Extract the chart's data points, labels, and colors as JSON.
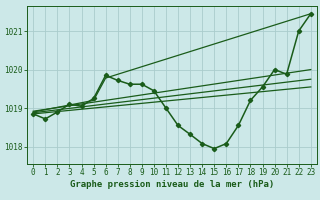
{
  "bg_color": "#cce8e8",
  "grid_color": "#aacccc",
  "line_color": "#1a5c1a",
  "title": "Graphe pression niveau de la mer (hPa)",
  "title_fontsize": 6.5,
  "tick_fontsize": 5.5,
  "xlim": [
    -0.5,
    23.5
  ],
  "ylim": [
    1017.55,
    1021.65
  ],
  "yticks": [
    1018,
    1019,
    1020,
    1021
  ],
  "xticks": [
    0,
    1,
    2,
    3,
    4,
    5,
    6,
    7,
    8,
    9,
    10,
    11,
    12,
    13,
    14,
    15,
    16,
    17,
    18,
    19,
    20,
    21,
    22,
    23
  ],
  "lines": [
    {
      "x": [
        0,
        1,
        2,
        3,
        4,
        5,
        6,
        7,
        8,
        9,
        10,
        11,
        12,
        13,
        14,
        15,
        16,
        17,
        18,
        19,
        20,
        21,
        22,
        23
      ],
      "y": [
        1018.85,
        1018.72,
        1018.9,
        1019.1,
        1019.05,
        1019.25,
        1019.85,
        1019.72,
        1019.62,
        1019.62,
        1019.45,
        1019.0,
        1018.55,
        1018.32,
        1018.08,
        1017.95,
        1018.08,
        1018.55,
        1019.2,
        1019.55,
        1020.0,
        1019.88,
        1021.0,
        1021.45
      ],
      "marker": "D",
      "markersize": 2.2,
      "linewidth": 1.1
    },
    {
      "x": [
        0,
        23
      ],
      "y": [
        1018.85,
        1019.55
      ],
      "marker": null,
      "linewidth": 0.9
    },
    {
      "x": [
        0,
        23
      ],
      "y": [
        1018.88,
        1019.75
      ],
      "marker": null,
      "linewidth": 0.9
    },
    {
      "x": [
        0,
        23
      ],
      "y": [
        1018.92,
        1020.0
      ],
      "marker": null,
      "linewidth": 0.9
    },
    {
      "x": [
        0,
        5,
        6,
        23
      ],
      "y": [
        1018.9,
        1019.2,
        1019.78,
        1021.45
      ],
      "marker": null,
      "linewidth": 0.9
    }
  ]
}
